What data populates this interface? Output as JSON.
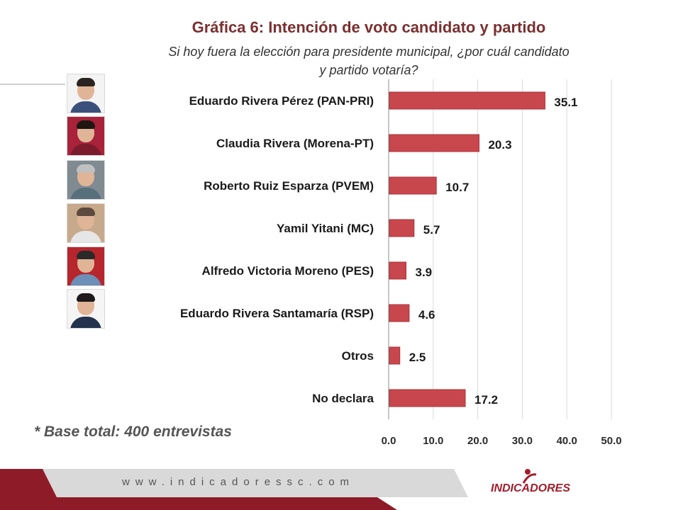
{
  "title": "Gráfica 6: Intención de voto candidato  y partido",
  "subtitle_line1": "Si hoy  fuera la elección para presidente municipal, ¿por cuál candidato",
  "subtitle_line2": "y partido votaría?",
  "base_note": "* Base total: 400 entrevistas",
  "footer": {
    "url": "www.indicadoressc.com",
    "logo": "INDICADORES"
  },
  "colors": {
    "bar": "#c8474d",
    "bar_stroke": "#a83238",
    "title": "#7b2f2f",
    "footer_red": "#8e1c28",
    "footer_gray": "#cfcfcf"
  },
  "photos": [
    {
      "name": "photo-eduardo-rivera-perez",
      "bg": "#f3f3f3",
      "hair": "#2b2321",
      "body": "#3a4f7a"
    },
    {
      "name": "photo-claudia-rivera",
      "bg": "#a8223a",
      "hair": "#1f1613",
      "body": "#7a1c2c"
    },
    {
      "name": "photo-roberto-ruiz-esparza",
      "bg": "#7f8a91",
      "hair": "#bfc0c0",
      "body": "#58707c"
    },
    {
      "name": "photo-yamil-yitani",
      "bg": "#c7a98b",
      "hair": "#5c4a3e",
      "body": "#e6e6e6"
    },
    {
      "name": "photo-alfredo-victoria-moreno",
      "bg": "#b7252d",
      "hair": "#2a2a2a",
      "body": "#6b8fb7"
    },
    {
      "name": "photo-eduardo-rivera-santamaria",
      "bg": "#f5f5f5",
      "hair": "#1d1a19",
      "body": "#24324c"
    }
  ],
  "chart_data": {
    "type": "bar",
    "orientation": "horizontal",
    "categories": [
      "Eduardo Rivera Pérez (PAN-PRI)",
      "Claudia Rivera (Morena-PT)",
      "Roberto Ruiz Esparza (PVEM)",
      "Yamil Yitani (MC)",
      "Alfredo Victoria Moreno (PES)",
      "Eduardo Rivera Santamaría (RSP)",
      "Otros",
      "No declara"
    ],
    "values": [
      35.1,
      20.3,
      10.7,
      5.7,
      3.9,
      4.6,
      2.5,
      17.2
    ],
    "value_labels": [
      "35.1",
      "20.3",
      "10.7",
      "5.7",
      "3.9",
      "4.6",
      "2.5",
      "17.2"
    ],
    "xlim": [
      0,
      50
    ],
    "ticks": [
      0,
      10,
      20,
      30,
      40,
      50
    ],
    "tick_labels": [
      "0.0",
      "10.0",
      "20.0",
      "30.0",
      "40.0",
      "50.0"
    ],
    "grid": true,
    "legend": "none"
  }
}
